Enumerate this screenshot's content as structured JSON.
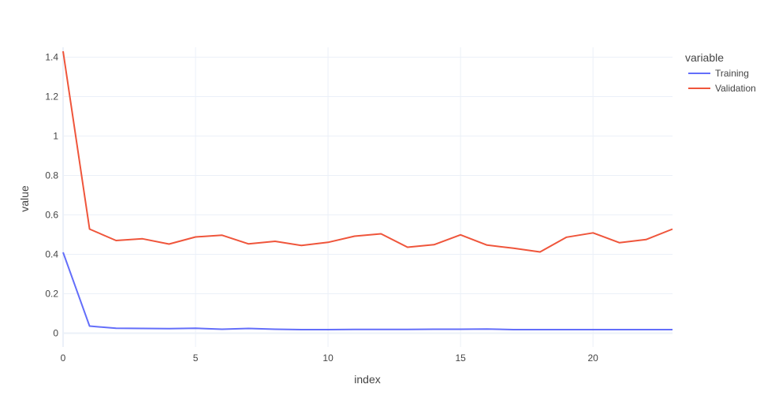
{
  "chart_data": {
    "type": "line",
    "xlabel": "index",
    "ylabel": "value",
    "xlim": [
      0,
      23
    ],
    "ylim": [
      -0.07,
      1.45
    ],
    "x_ticks": [
      0,
      5,
      10,
      15,
      20
    ],
    "y_ticks": [
      0,
      0.2,
      0.4,
      0.6,
      0.8,
      1,
      1.2,
      1.4
    ],
    "y_tick_labels": [
      "0",
      "0.2",
      "0.4",
      "0.6",
      "0.8",
      "1",
      "1.2",
      "1.4"
    ],
    "grid": true,
    "legend_title": "variable",
    "legend_position": "top-right",
    "x": [
      0,
      1,
      2,
      3,
      4,
      5,
      6,
      7,
      8,
      9,
      10,
      11,
      12,
      13,
      14,
      15,
      16,
      17,
      18,
      19,
      20,
      21,
      22,
      23
    ],
    "series": [
      {
        "name": "Training",
        "color": "#636efa",
        "values": [
          0.41,
          0.036,
          0.025,
          0.024,
          0.023,
          0.025,
          0.02,
          0.024,
          0.02,
          0.018,
          0.018,
          0.019,
          0.019,
          0.019,
          0.02,
          0.02,
          0.021,
          0.018,
          0.018,
          0.018,
          0.018,
          0.018,
          0.018,
          0.018
        ]
      },
      {
        "name": "Validation",
        "color": "#ef553b",
        "values": [
          1.43,
          0.528,
          0.47,
          0.479,
          0.452,
          0.488,
          0.497,
          0.453,
          0.466,
          0.445,
          0.461,
          0.492,
          0.504,
          0.436,
          0.449,
          0.499,
          0.447,
          0.431,
          0.412,
          0.487,
          0.509,
          0.459,
          0.475,
          0.528
        ]
      }
    ]
  }
}
